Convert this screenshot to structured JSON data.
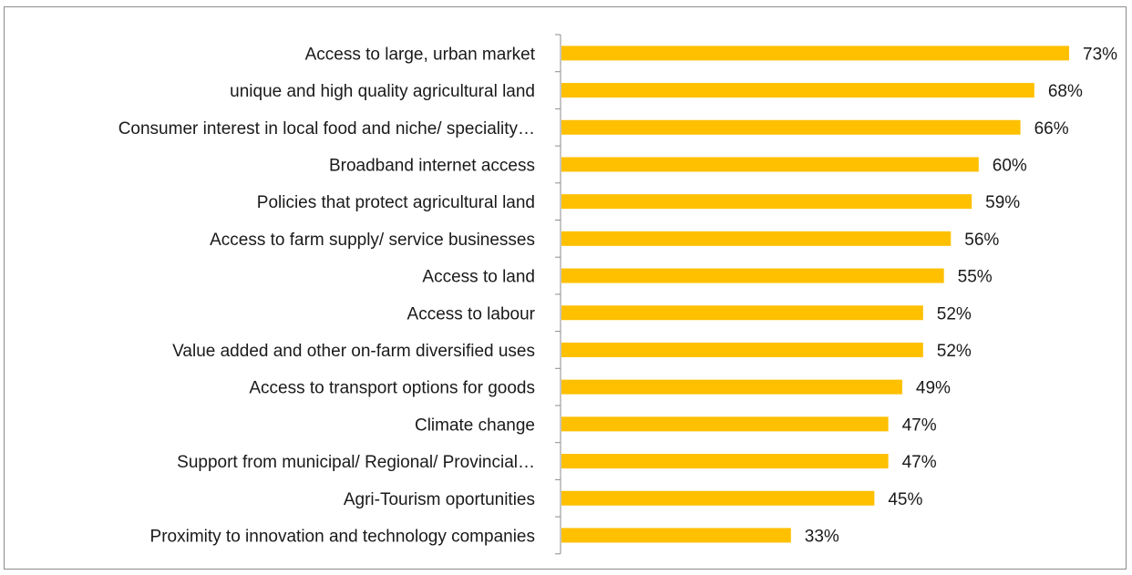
{
  "chart_data": {
    "type": "bar",
    "orientation": "horizontal",
    "categories": [
      "Access to large, urban market",
      "unique and high quality agricultural land",
      "Consumer interest in local food and niche/ speciality…",
      "Broadband internet access",
      "Policies that protect agricultural land",
      "Access to farm supply/ service businesses",
      "Access to land",
      "Access to labour",
      "Value added and other on-farm diversified uses",
      "Access to transport options for goods",
      "Climate change",
      "Support from municipal/ Regional/ Provincial…",
      "Agri-Tourism oportunities",
      "Proximity to innovation and technology companies"
    ],
    "values": [
      73,
      68,
      66,
      60,
      59,
      56,
      55,
      52,
      52,
      49,
      47,
      47,
      45,
      33
    ],
    "value_labels": [
      "73%",
      "68%",
      "66%",
      "60%",
      "59%",
      "56%",
      "55%",
      "52%",
      "52%",
      "49%",
      "47%",
      "47%",
      "45%",
      "33%"
    ],
    "bar_color": "#FFC000",
    "xlim": [
      0,
      80
    ],
    "grid": false,
    "legend": "none",
    "title": "",
    "xlabel": "",
    "ylabel": ""
  }
}
